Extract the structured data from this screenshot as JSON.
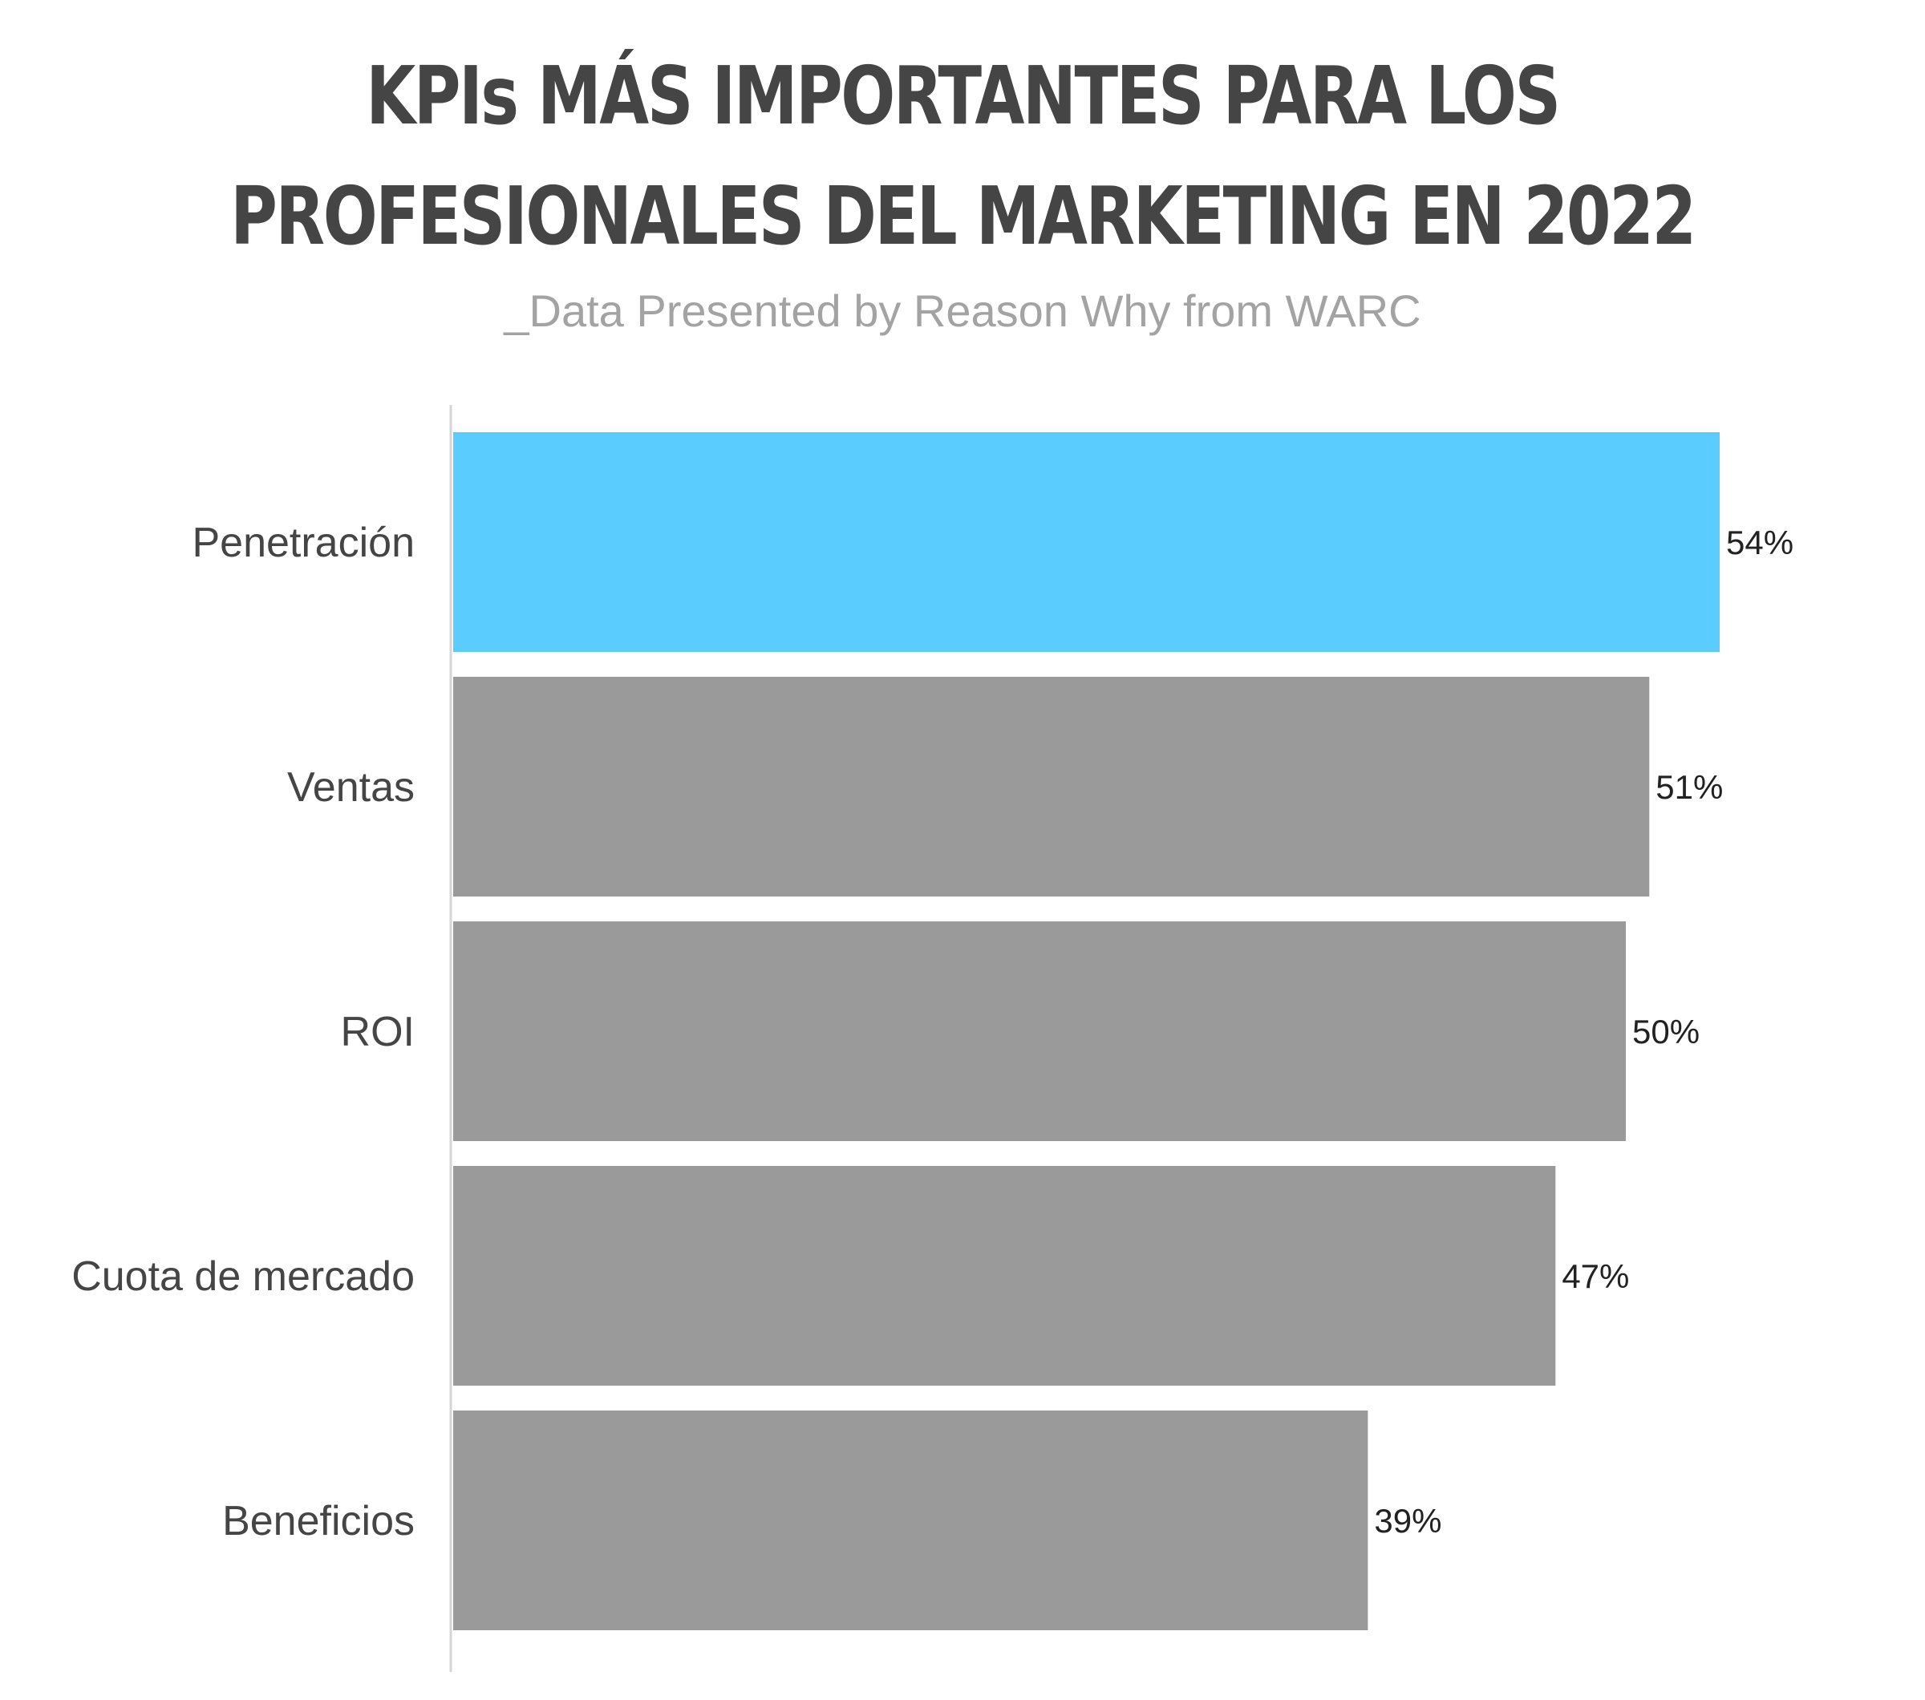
{
  "chart_data": {
    "type": "bar",
    "orientation": "horizontal",
    "title_lines": [
      "KPIs MÁS IMPORTANTES PARA LOS",
      "PROFESIONALES DEL MARKETING EN 2022"
    ],
    "subtitle": "_Data Presented by Reason Why from WARC",
    "categories": [
      "Penetración",
      "Ventas",
      "ROI",
      "Cuota de mercado",
      "Beneficios"
    ],
    "values": [
      54,
      51,
      50,
      47,
      39
    ],
    "value_labels": [
      "54%",
      "51%",
      "50%",
      "47%",
      "39%"
    ],
    "unit": "%",
    "xlim": [
      0,
      54
    ],
    "grid": false,
    "colors": {
      "highlight": "#5bccfe",
      "default": "#9a9a9a",
      "axis": "#d6d6d6"
    },
    "highlight_index": 0
  }
}
